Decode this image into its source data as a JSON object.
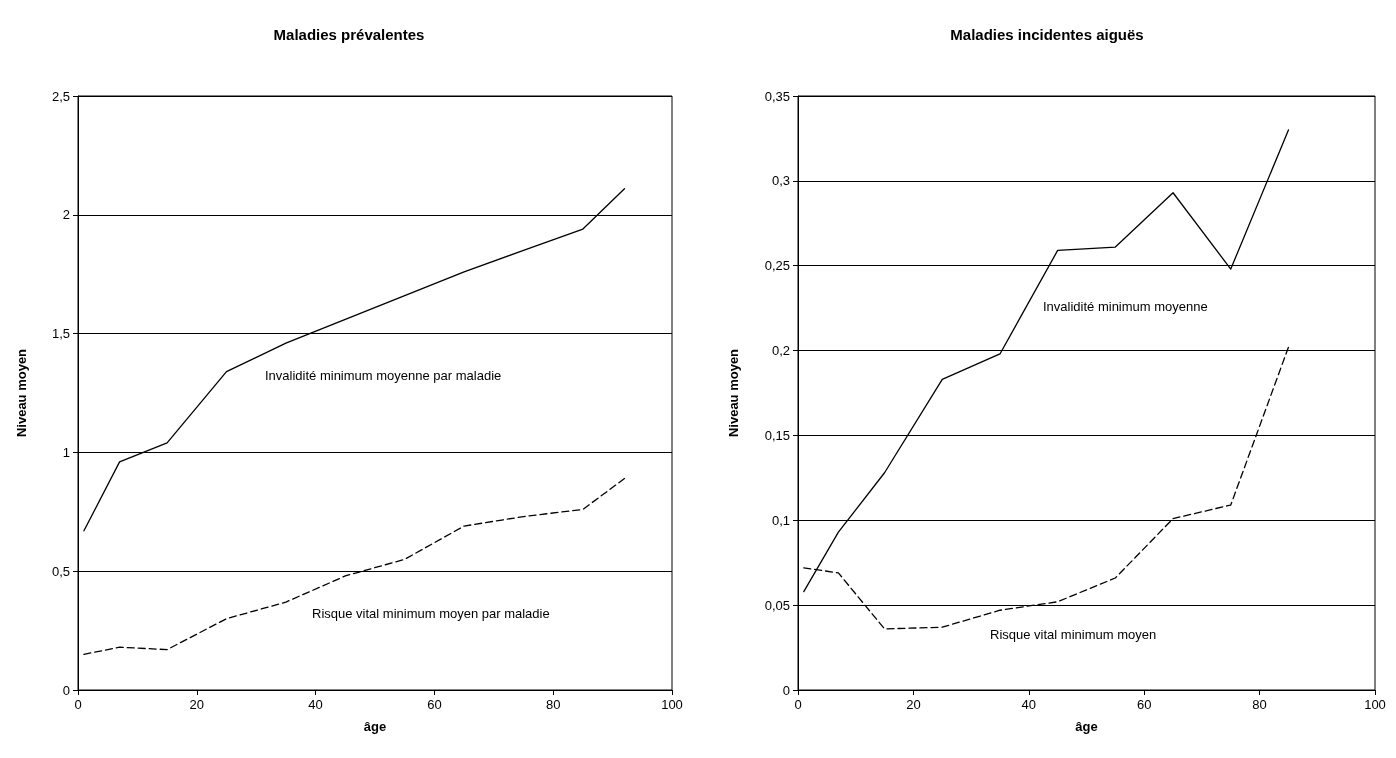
{
  "chart_data": [
    {
      "type": "line",
      "title": "Maladies prévalentes",
      "xlabel": "âge",
      "ylabel": "Niveau moyen",
      "grid": "y",
      "marker": "none",
      "xlim": [
        0,
        100
      ],
      "xticks": [
        0,
        20,
        40,
        60,
        80,
        100
      ],
      "ylim": [
        0,
        2.5
      ],
      "yticks": [
        0,
        {
          "value": 0.5,
          "label": "0,5"
        },
        1,
        {
          "value": 1.5,
          "label": "1,5"
        },
        2,
        {
          "value": 2.5,
          "label": "2,5"
        }
      ],
      "series": [
        {
          "name": "Invalidité minimum moyenne par maladie",
          "color": "#000000",
          "line_style": "solid",
          "x": [
            1,
            7,
            15,
            25,
            35,
            45,
            55,
            65,
            75,
            85,
            92
          ],
          "values": [
            0.67,
            0.96,
            1.04,
            1.34,
            1.46,
            1.56,
            1.66,
            1.76,
            1.85,
            1.94,
            2.11
          ]
        },
        {
          "name": "Risque vital minimum moyen par maladie",
          "color": "#000000",
          "line_style": "dashed",
          "x": [
            1,
            7,
            15,
            25,
            35,
            45,
            55,
            65,
            75,
            85,
            92
          ],
          "values": [
            0.15,
            0.18,
            0.17,
            0.3,
            0.37,
            0.48,
            0.55,
            0.69,
            0.73,
            0.76,
            0.89
          ]
        }
      ]
    },
    {
      "type": "line",
      "title": "Maladies incidentes aiguës",
      "xlabel": "âge",
      "ylabel": "Niveau moyen",
      "grid": "y",
      "marker": "none",
      "xlim": [
        0,
        100
      ],
      "xticks": [
        0,
        20,
        40,
        60,
        80,
        100
      ],
      "ylim": [
        0,
        0.35
      ],
      "yticks": [
        0,
        {
          "value": 0.05,
          "label": "0,05"
        },
        {
          "value": 0.1,
          "label": "0,1"
        },
        {
          "value": 0.15,
          "label": "0,15"
        },
        {
          "value": 0.2,
          "label": "0,2"
        },
        {
          "value": 0.25,
          "label": "0,25"
        },
        {
          "value": 0.3,
          "label": "0,3"
        },
        {
          "value": 0.35,
          "label": "0,35"
        }
      ],
      "series": [
        {
          "name": "Invalidité minimum moyenne",
          "color": "#000000",
          "line_style": "solid",
          "x": [
            1,
            7,
            15,
            25,
            35,
            45,
            55,
            65,
            75,
            85
          ],
          "values": [
            0.058,
            0.093,
            0.128,
            0.183,
            0.198,
            0.259,
            0.261,
            0.293,
            0.248,
            0.33
          ]
        },
        {
          "name": "Risque vital minimum moyen",
          "color": "#000000",
          "line_style": "dashed",
          "x": [
            1,
            7,
            15,
            25,
            35,
            45,
            55,
            65,
            75,
            85
          ],
          "values": [
            0.072,
            0.069,
            0.036,
            0.037,
            0.047,
            0.052,
            0.066,
            0.101,
            0.109,
            0.202
          ]
        }
      ]
    }
  ]
}
